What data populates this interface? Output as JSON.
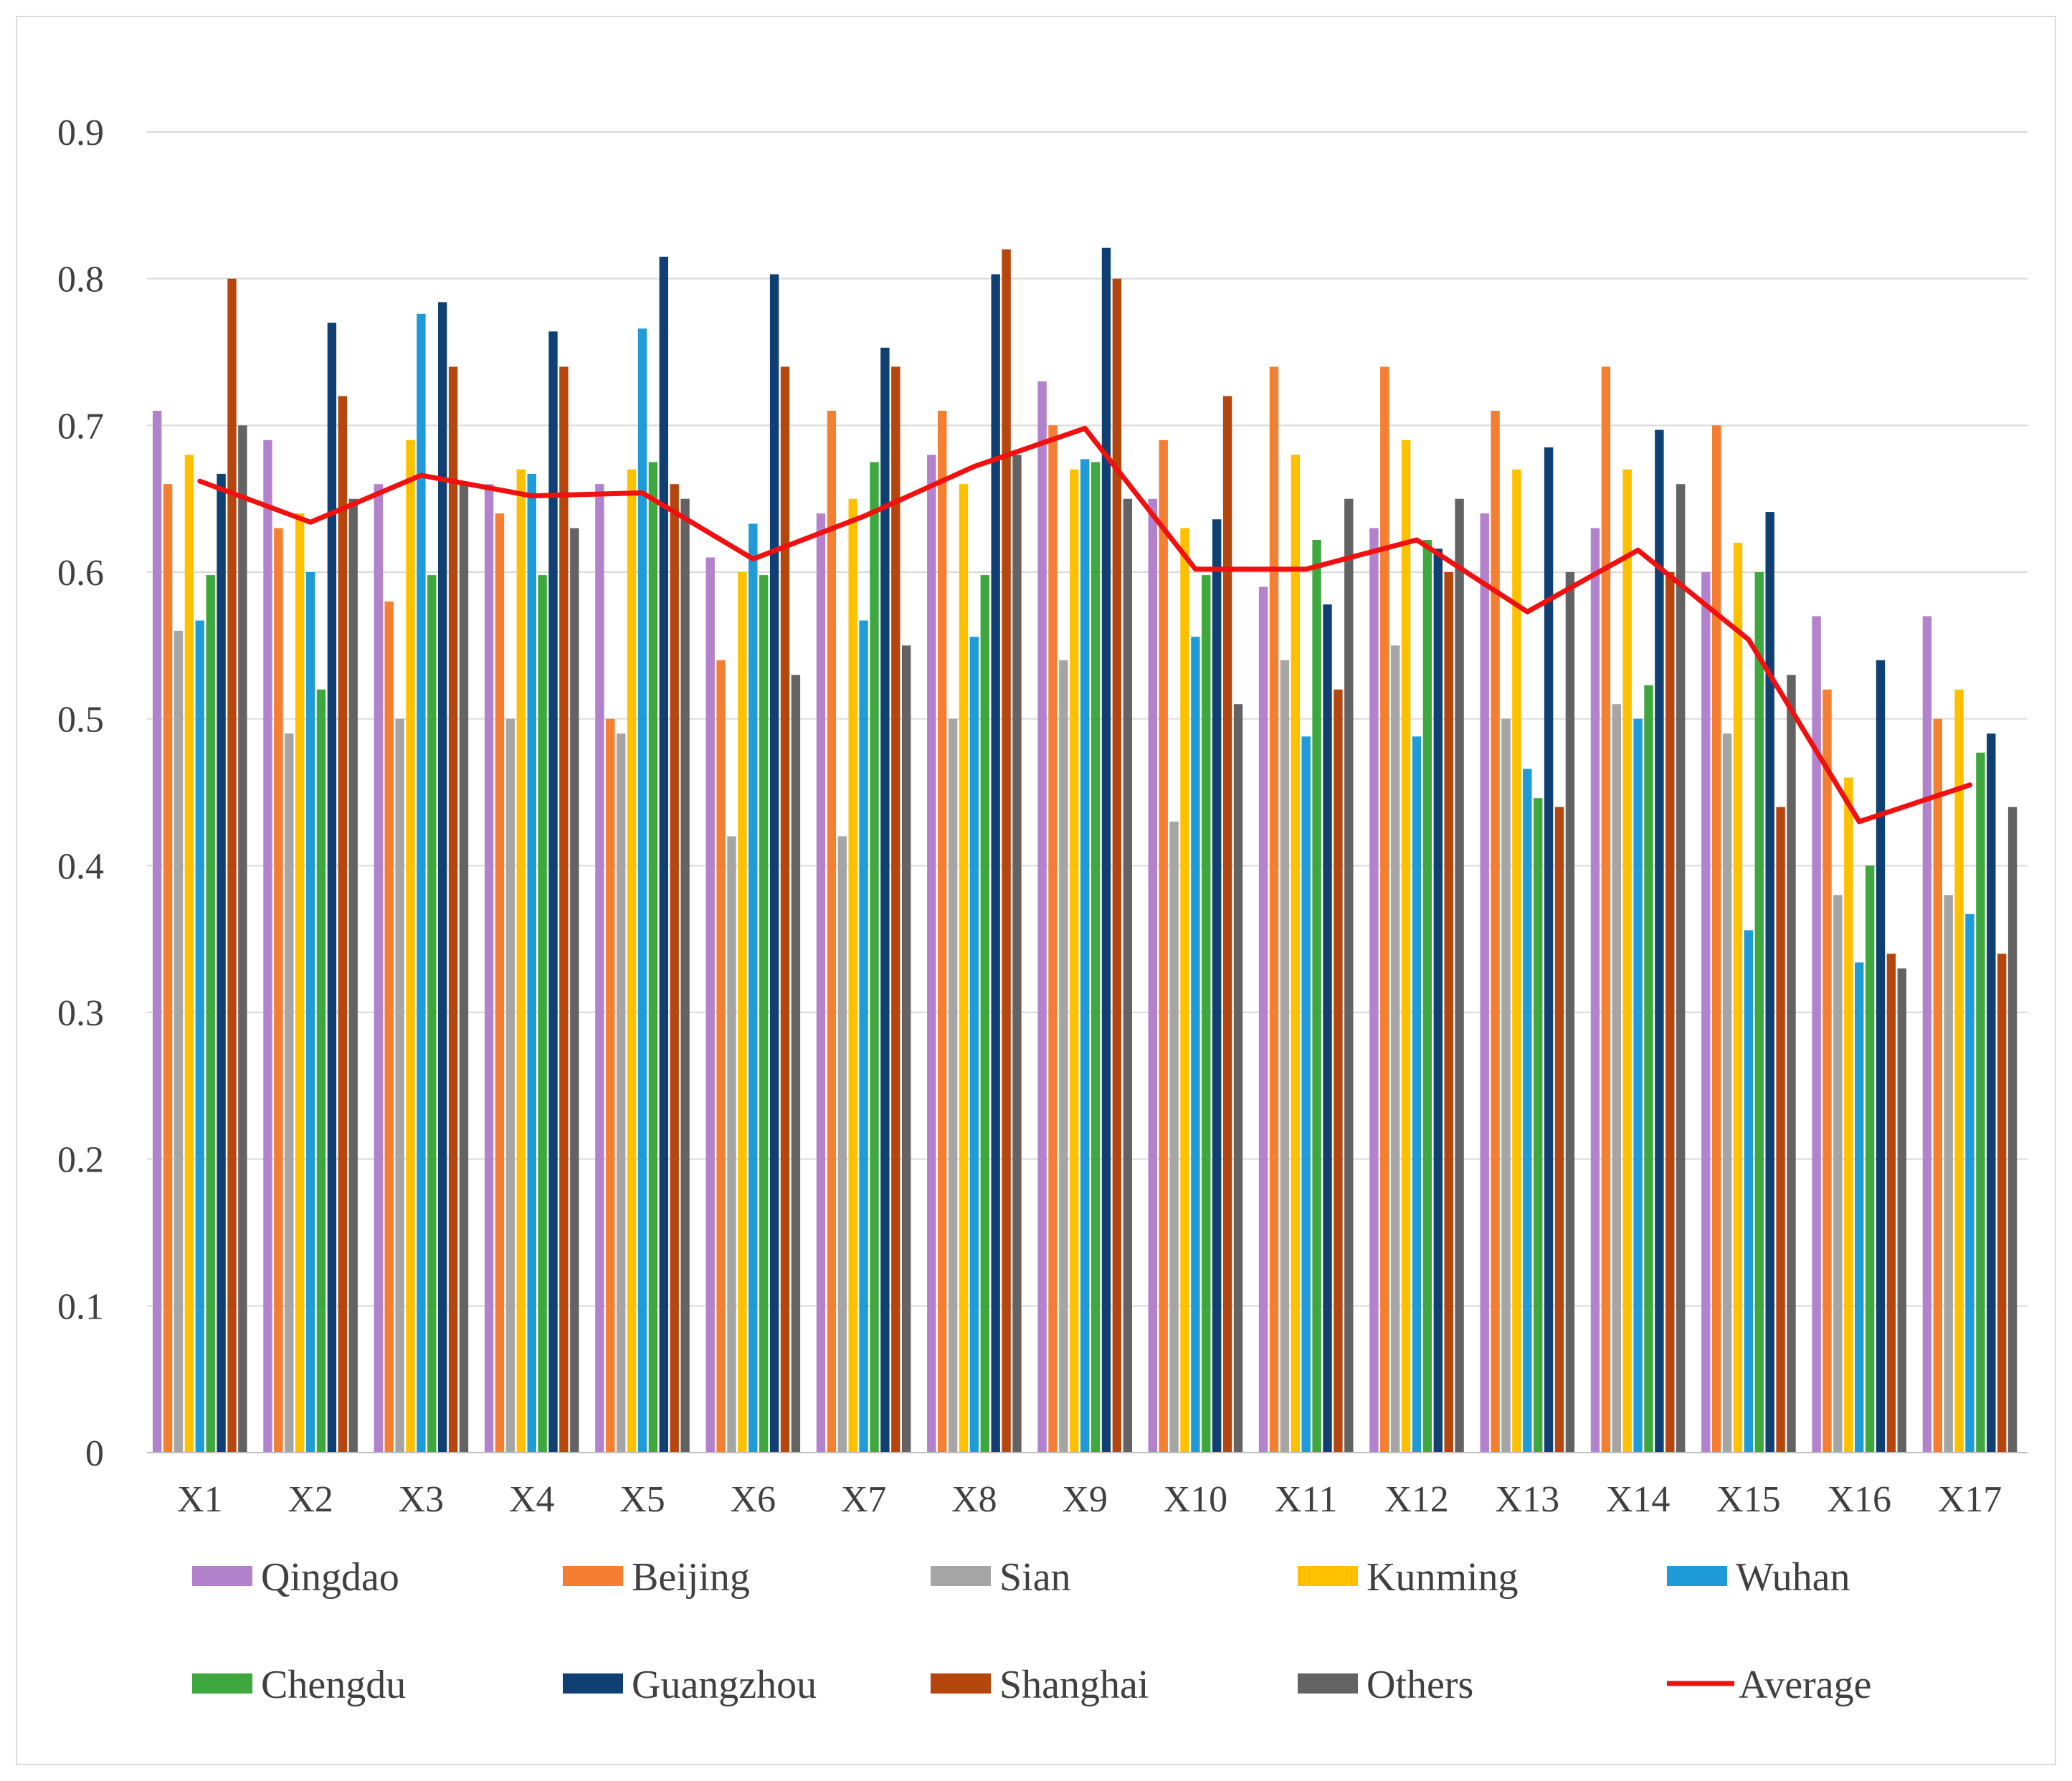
{
  "chart_data": {
    "type": "bar",
    "title": "",
    "xlabel": "",
    "ylabel": "",
    "ylim": [
      0,
      0.9
    ],
    "yticks": [
      "0",
      "0.1",
      "0.2",
      "0.3",
      "0.4",
      "0.5",
      "0.6",
      "0.7",
      "0.8",
      "0.9"
    ],
    "grid": true,
    "legend_position": "bottom",
    "categories": [
      "X1",
      "X2",
      "X3",
      "X4",
      "X5",
      "X6",
      "X7",
      "X8",
      "X9",
      "X10",
      "X11",
      "X12",
      "X13",
      "X14",
      "X15",
      "X16",
      "X17"
    ],
    "series": [
      {
        "name": "Qingdao",
        "color": "#b382cc",
        "values": [
          0.71,
          0.69,
          0.66,
          0.66,
          0.66,
          0.61,
          0.64,
          0.68,
          0.73,
          0.65,
          0.59,
          0.63,
          0.64,
          0.63,
          0.6,
          0.57,
          0.57
        ]
      },
      {
        "name": "Beijing",
        "color": "#f47e32",
        "values": [
          0.66,
          0.63,
          0.58,
          0.64,
          0.5,
          0.54,
          0.71,
          0.71,
          0.7,
          0.69,
          0.74,
          0.74,
          0.71,
          0.74,
          0.7,
          0.52,
          0.5
        ]
      },
      {
        "name": "Sian",
        "color": "#a5a5a5",
        "values": [
          0.56,
          0.49,
          0.5,
          0.5,
          0.49,
          0.42,
          0.42,
          0.5,
          0.54,
          0.43,
          0.54,
          0.55,
          0.5,
          0.51,
          0.49,
          0.38,
          0.38
        ]
      },
      {
        "name": "Kunming",
        "color": "#ffc000",
        "values": [
          0.68,
          0.64,
          0.69,
          0.67,
          0.67,
          0.6,
          0.65,
          0.66,
          0.67,
          0.63,
          0.68,
          0.69,
          0.67,
          0.67,
          0.62,
          0.46,
          0.52
        ]
      },
      {
        "name": "Wuhan",
        "color": "#1f9bd8",
        "values": [
          0.567,
          0.6,
          0.776,
          0.667,
          0.766,
          0.633,
          0.567,
          0.556,
          0.677,
          0.556,
          0.488,
          0.488,
          0.466,
          0.5,
          0.356,
          0.334,
          0.367
        ]
      },
      {
        "name": "Chengdu",
        "color": "#3ea83e",
        "values": [
          0.598,
          0.52,
          0.598,
          0.598,
          0.675,
          0.598,
          0.675,
          0.598,
          0.675,
          0.598,
          0.622,
          0.622,
          0.446,
          0.523,
          0.6,
          0.4,
          0.477
        ]
      },
      {
        "name": "Guangzhou",
        "color": "#0f3f73",
        "values": [
          0.667,
          0.77,
          0.784,
          0.764,
          0.815,
          0.803,
          0.753,
          0.803,
          0.821,
          0.636,
          0.578,
          0.616,
          0.685,
          0.697,
          0.641,
          0.54,
          0.49
        ]
      },
      {
        "name": "Shanghai",
        "color": "#b5460d",
        "values": [
          0.8,
          0.72,
          0.74,
          0.74,
          0.66,
          0.74,
          0.74,
          0.82,
          0.8,
          0.72,
          0.52,
          0.6,
          0.44,
          0.6,
          0.44,
          0.34,
          0.34
        ]
      },
      {
        "name": "Others",
        "color": "#636363",
        "values": [
          0.7,
          0.65,
          0.66,
          0.63,
          0.65,
          0.53,
          0.55,
          0.68,
          0.65,
          0.51,
          0.65,
          0.65,
          0.6,
          0.66,
          0.53,
          0.33,
          0.44
        ]
      }
    ],
    "line_series": {
      "name": "Average",
      "color": "#f01010",
      "values": [
        0.662,
        0.634,
        0.666,
        0.652,
        0.654,
        0.609,
        0.638,
        0.672,
        0.698,
        0.602,
        0.602,
        0.622,
        0.573,
        0.615,
        0.554,
        0.43,
        0.455
      ]
    }
  }
}
